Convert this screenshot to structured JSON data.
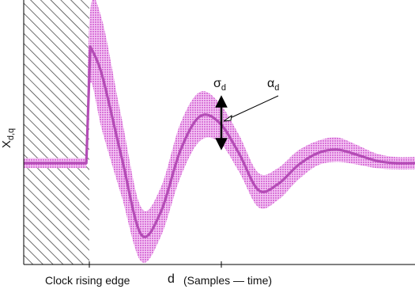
{
  "chart_data": {
    "type": "area",
    "x_label_start": "Clock rising edge",
    "x_symbol": "d",
    "x_label": "(Samples — time)",
    "y_symbol": "X",
    "y_subscript": "d,q",
    "annotations": {
      "sigma_symbol": "σ",
      "sigma_subscript": "d",
      "alpha_symbol": "α",
      "alpha_subscript": "d"
    },
    "grid": false,
    "colors": {
      "mean_line": "#b44cb6",
      "band_fill": "#e08ae0",
      "hatch": "#333333",
      "arrow": "#000000"
    },
    "mean_signal": {
      "x": [
        0,
        0.16,
        0.17,
        0.2,
        0.25,
        0.3,
        0.35,
        0.4,
        0.45,
        0.5,
        0.55,
        0.6,
        0.65,
        0.7,
        0.75,
        0.8,
        0.85,
        0.9,
        0.95,
        1.0
      ],
      "y": [
        0,
        0,
        0.95,
        0.72,
        0.05,
        -0.58,
        -0.4,
        0.1,
        0.38,
        0.33,
        0.08,
        -0.22,
        -0.17,
        -0.02,
        0.08,
        0.11,
        0.07,
        0.02,
        0.0,
        0.0
      ]
    },
    "band_halfwidth": [
      0.04,
      0.04,
      0.3,
      0.45,
      0.32,
      0.22,
      0.2,
      0.22,
      0.2,
      0.16,
      0.15,
      0.14,
      0.13,
      0.12,
      0.1,
      0.1,
      0.08,
      0.06,
      0.05,
      0.05
    ]
  }
}
